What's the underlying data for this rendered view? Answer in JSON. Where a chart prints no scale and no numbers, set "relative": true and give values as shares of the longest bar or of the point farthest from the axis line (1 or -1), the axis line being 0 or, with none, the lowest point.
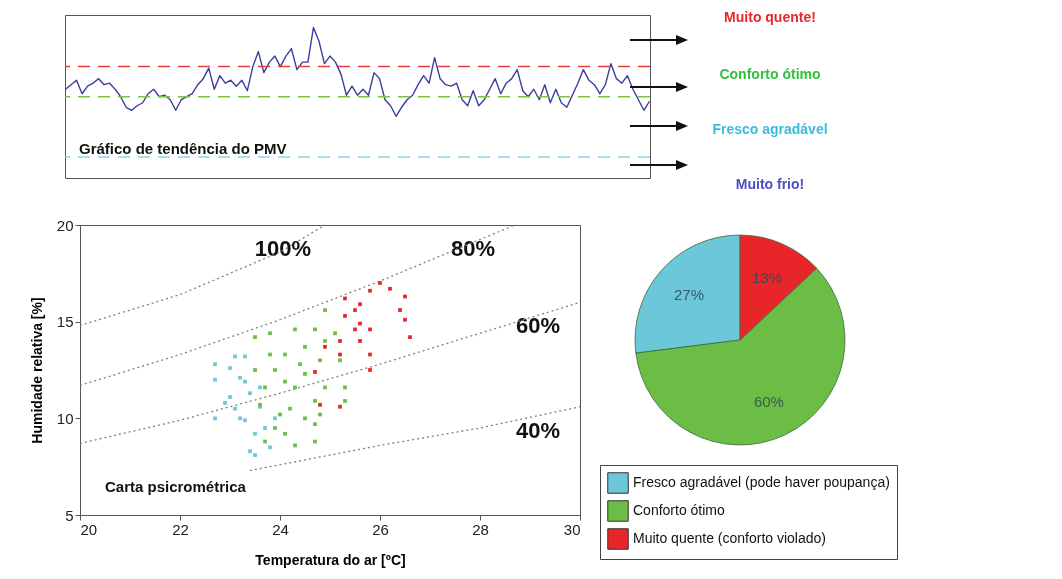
{
  "chart_data": [
    {
      "type": "line",
      "relative": true,
      "grid": false,
      "annotations": [
        "Gráfico de tendência do PMV",
        "Muito quente!",
        "Conforto ótimo",
        "Fresco agradável",
        "Muito frio!"
      ],
      "categories": [
        null,
        null,
        null,
        null,
        null,
        null,
        null,
        null,
        null,
        null,
        null,
        null,
        null,
        null,
        null,
        null,
        null,
        null,
        null,
        null,
        null,
        null,
        null,
        null,
        null,
        null,
        null,
        null,
        null,
        null,
        null,
        null,
        null,
        null,
        null,
        null,
        null,
        null,
        null,
        null,
        null,
        null,
        null,
        null,
        null,
        null,
        null,
        null,
        null,
        null,
        null,
        null,
        null,
        null,
        null,
        null,
        null,
        null,
        null,
        null,
        null,
        null,
        null,
        null,
        null,
        null,
        null,
        null,
        null,
        null,
        null,
        null,
        null,
        null,
        null,
        null,
        null,
        null,
        null,
        null,
        null,
        null,
        null,
        null,
        null,
        null,
        null,
        null,
        null,
        null,
        null,
        null,
        null,
        null,
        null,
        null,
        null,
        null,
        null,
        null,
        null,
        null,
        null,
        null,
        null,
        null,
        null
      ],
      "series": [
        {
          "color": "#3a3f9e",
          "values": [
            0.59,
            0.62,
            0.65,
            0.56,
            0.61,
            0.63,
            0.66,
            0.62,
            0.63,
            0.59,
            0.54,
            0.47,
            0.45,
            0.48,
            0.5,
            0.56,
            0.59,
            0.54,
            0.55,
            0.52,
            0.45,
            0.52,
            0.54,
            0.56,
            0.62,
            0.66,
            0.73,
            0.59,
            0.68,
            0.63,
            0.65,
            0.61,
            0.65,
            0.58,
            0.74,
            0.84,
            0.7,
            0.77,
            0.81,
            0.74,
            0.81,
            0.86,
            0.72,
            0.77,
            0.77,
            1,
            0.91,
            0.76,
            0.81,
            0.77,
            0.69,
            0.55,
            0.61,
            0.55,
            0.59,
            0.55,
            0.7,
            0.66,
            0.52,
            0.48,
            0.41,
            0.47,
            0.52,
            0.55,
            0.62,
            0.68,
            0.63,
            0.8,
            0.66,
            0.62,
            0.61,
            0.63,
            0.52,
            0.48,
            0.58,
            0.48,
            0.52,
            0.59,
            0.66,
            0.56,
            0.63,
            0.66,
            0.72,
            0.58,
            0.54,
            0.59,
            0.52,
            0.62,
            0.5,
            0.59,
            0.5,
            0.47,
            0.55,
            0.63,
            0.72,
            0.65,
            0.62,
            0.56,
            0.62,
            0.76,
            0.66,
            0.63,
            0.68,
            0.59,
            0.52,
            0.45,
            0.51
          ]
        }
      ],
      "ref_lines": [
        {
          "axis": "y",
          "value": 0.74,
          "color": "#e8413c",
          "line_style": "dashed"
        },
        {
          "axis": "y",
          "value": 0.54,
          "color": "#7dc242",
          "line_style": "dashed"
        },
        {
          "axis": "y",
          "value": 0.14,
          "color": "#8fd6e6",
          "line_style": "dashed"
        }
      ]
    },
    {
      "type": "scatter",
      "xlabel": "Temperatura do ar [ºC]",
      "ylabel": "Humidade relativa [%]",
      "xlim": [
        20,
        30
      ],
      "xticks": [
        20,
        22,
        24,
        26,
        28,
        30
      ],
      "ylim": [
        5,
        20
      ],
      "yticks": [
        5,
        10,
        15,
        20
      ],
      "grid": false,
      "marker": "square",
      "annotations": [
        "Carta psicrométrica"
      ],
      "series": [
        {
          "type": "line",
          "name": "100%",
          "color": "#808080",
          "line_style": "dotted",
          "marker": "none",
          "x": [
            20,
            22,
            24,
            24.9
          ],
          "values": [
            14.8,
            16.4,
            18.6,
            20
          ]
        },
        {
          "type": "line",
          "name": "80%",
          "color": "#808080",
          "line_style": "dotted",
          "marker": "none",
          "x": [
            20,
            22,
            24,
            26,
            28.7
          ],
          "values": [
            11.7,
            13.3,
            15.1,
            17.1,
            20
          ]
        },
        {
          "type": "line",
          "name": "60%",
          "color": "#808080",
          "line_style": "dotted",
          "marker": "none",
          "x": [
            20,
            22,
            24,
            26,
            28,
            30
          ],
          "values": [
            8.7,
            9.9,
            11.3,
            12.8,
            14.4,
            16.0
          ]
        },
        {
          "type": "line",
          "name": "40%",
          "color": "#808080",
          "line_style": "dotted",
          "marker": "none",
          "x": [
            23.4,
            26,
            28,
            30
          ],
          "values": [
            7.3,
            8.6,
            9.5,
            10.6
          ]
        },
        {
          "type": "scatter",
          "color": "#6cc7d8",
          "x": [
            22.7,
            22.7,
            22.7,
            23.0,
            23.1,
            23.0,
            23.1,
            23.2,
            23.3,
            23.3,
            23.3,
            23.4,
            23.5,
            23.5,
            23.6,
            23.7,
            23.8,
            23.9,
            23.4,
            23.6,
            22.9,
            23.2
          ],
          "values": [
            12.8,
            12.0,
            10.0,
            12.6,
            13.2,
            11.1,
            10.5,
            10.0,
            13.2,
            11.9,
            9.9,
            8.3,
            9.2,
            8.1,
            10.6,
            9.5,
            8.5,
            10.0,
            11.3,
            11.6,
            10.8,
            12.1
          ]
        },
        {
          "type": "scatter",
          "color": "#6cbd45",
          "x": [
            23.5,
            23.5,
            23.6,
            23.7,
            23.8,
            23.9,
            24.0,
            24.1,
            24.1,
            24.3,
            24.3,
            24.3,
            24.5,
            24.5,
            24.7,
            24.7,
            24.7,
            24.7,
            24.8,
            24.9,
            24.9,
            24.9,
            25.1,
            25.2,
            25.3,
            25.3,
            23.7,
            23.8,
            24.1,
            24.4,
            24.2,
            24.5,
            24.8,
            23.9
          ],
          "values": [
            14.2,
            12.5,
            10.7,
            8.8,
            14.4,
            12.5,
            10.2,
            9.2,
            13.3,
            14.6,
            11.6,
            8.6,
            13.7,
            12.3,
            14.6,
            10.9,
            8.8,
            9.7,
            13.0,
            11.6,
            15.6,
            14.0,
            14.4,
            13.0,
            11.6,
            10.9,
            11.6,
            13.3,
            11.9,
            12.8,
            10.5,
            10.0,
            10.2,
            9.5
          ]
        },
        {
          "type": "scatter",
          "color": "#e8262a",
          "x": [
            25.2,
            25.2,
            25.3,
            25.3,
            25.5,
            25.5,
            25.6,
            25.6,
            25.8,
            25.8,
            25.8,
            26.0,
            26.2,
            26.4,
            26.5,
            26.5,
            26.6,
            24.9,
            24.7,
            24.8,
            25.2,
            25.6,
            25.8
          ],
          "values": [
            14.0,
            13.3,
            15.3,
            16.2,
            15.6,
            14.6,
            14.9,
            15.9,
            14.6,
            12.5,
            16.6,
            17.0,
            16.7,
            15.6,
            16.3,
            15.1,
            14.2,
            13.7,
            12.4,
            10.7,
            10.6,
            14.0,
            13.3
          ]
        }
      ]
    },
    {
      "type": "pie",
      "legend": "bottom",
      "categories": [
        "Fresco agradável (pode haver poupança)",
        "Conforto ótimo",
        "Muito quente (conforto violado)"
      ],
      "values": [
        27,
        60,
        13
      ],
      "value_labels": [
        "27%",
        "60%",
        "13%"
      ],
      "colors": [
        "#6cc7d8",
        "#6cbd45",
        "#e8262a"
      ]
    }
  ]
}
